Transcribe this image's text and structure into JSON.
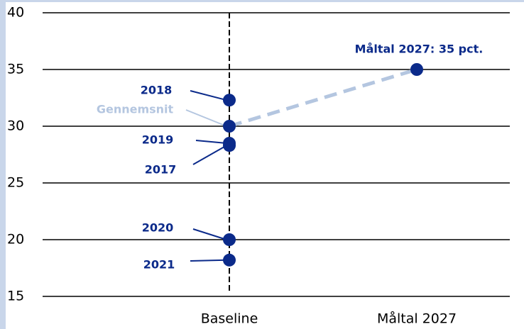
{
  "chart_data": {
    "type": "dot",
    "categories": [
      "Baseline",
      "Måltal 2027"
    ],
    "ylim": [
      15,
      40
    ],
    "yticks": [
      15,
      20,
      25,
      30,
      35,
      40
    ],
    "grid": true,
    "color": "#0b2a8a",
    "average_color": "#b4c6e0",
    "baseline_points": [
      {
        "label": "2018",
        "value": 32.3
      },
      {
        "label": "Gennemsnit",
        "value": 30
      },
      {
        "label": "2019",
        "value": 28.5
      },
      {
        "label": "2017",
        "value": 28.3
      },
      {
        "label": "2020",
        "value": 20
      },
      {
        "label": "2021",
        "value": 18.2
      }
    ],
    "target": {
      "label": "Måltal 2027: 35 pct.",
      "value": 35
    }
  }
}
